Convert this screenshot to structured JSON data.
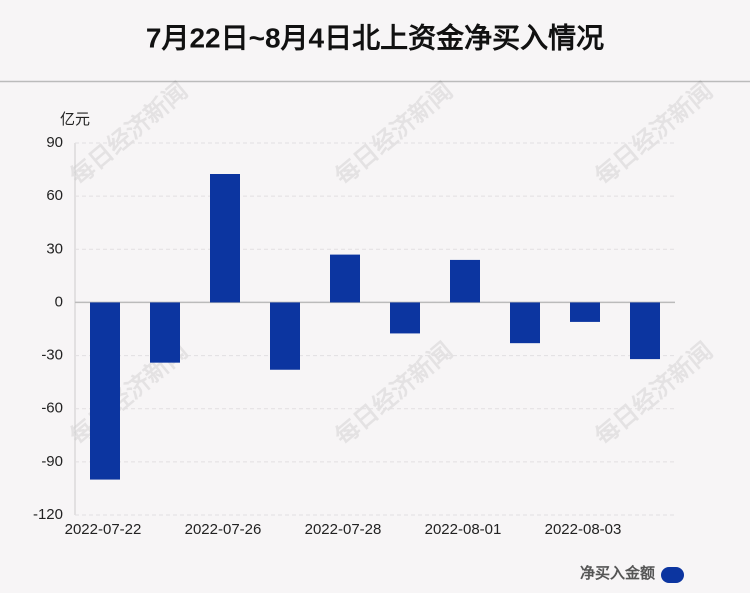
{
  "chart_data": {
    "type": "bar",
    "title": "7月22日~8月4日北上资金净买入情况",
    "y_unit": "亿元",
    "categories": [
      "2022-07-22",
      null,
      "2022-07-26",
      null,
      "2022-07-28",
      null,
      "2022-08-01",
      null,
      "2022-08-03",
      null
    ],
    "series": [
      {
        "name": "净买入金额",
        "color": "#0c35a0",
        "values": [
          -100,
          -34,
          72.5,
          -38,
          27,
          -17.5,
          24,
          -23,
          -11,
          -32
        ]
      }
    ],
    "ylim": [
      -120,
      90
    ],
    "yticks": [
      90,
      60,
      30,
      0,
      -30,
      -60,
      -90,
      -120
    ],
    "grid": true,
    "legend": "bottom-right",
    "watermark": "每日经济新闻"
  }
}
